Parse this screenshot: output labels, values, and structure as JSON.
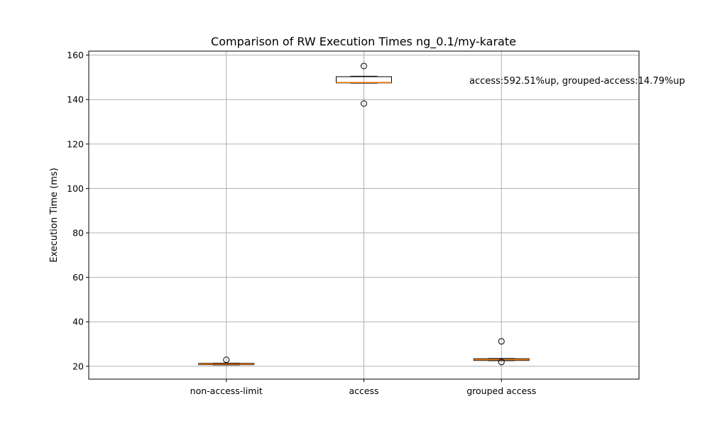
{
  "chart_data": {
    "type": "box",
    "title": "Comparison of RW Execution Times ng_0.1/my-karate",
    "xlabel": "",
    "ylabel": "Execution Time (ms)",
    "ylim": [
      14.2,
      161.8
    ],
    "yticks": [
      20,
      40,
      60,
      80,
      100,
      120,
      140,
      160
    ],
    "grid": true,
    "categories": [
      "non-access-limit",
      "access",
      "grouped access"
    ],
    "boxes": [
      {
        "q1": 20.7,
        "median": 21.0,
        "q3": 21.3,
        "whisker_low": 20.6,
        "whisker_high": 21.4,
        "fliers": [
          22.9
        ]
      },
      {
        "q1": 147.5,
        "median": 147.7,
        "q3": 150.3,
        "whisker_low": 147.4,
        "whisker_high": 150.5,
        "fliers": [
          155.1,
          138.2
        ]
      },
      {
        "q1": 22.6,
        "median": 23.0,
        "q3": 23.4,
        "whisker_low": 22.5,
        "whisker_high": 23.5,
        "fliers": [
          31.2,
          21.9
        ]
      }
    ],
    "annotation": {
      "text": "access:592.51%up, grouped-access:14.79%up",
      "y": 148.2
    },
    "colors": {
      "median": "#ff7f0e",
      "grid": "#b0b0b0"
    }
  }
}
